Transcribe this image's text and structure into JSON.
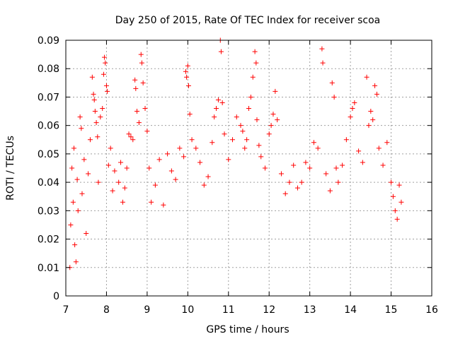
{
  "chart_data": {
    "type": "scatter",
    "title": "Day 250 of 2015, Rate Of TEC Index for receiver scoa",
    "xlabel": "GPS time / hours",
    "ylabel": "ROTI / TECUs",
    "xlim": [
      7,
      16
    ],
    "ylim": [
      0,
      0.09
    ],
    "xticks": [
      "7",
      "8",
      "9",
      "10",
      "11",
      "12",
      "13",
      "14",
      "15",
      "16"
    ],
    "yticks": [
      "0",
      "0.01",
      "0.02",
      "0.03",
      "0.04",
      "0.05",
      "0.06",
      "0.07",
      "0.08",
      "0.09"
    ],
    "grid": true,
    "marker": "+",
    "color": "#ff0000",
    "series": [
      {
        "points": [
          [
            7.1,
            0.01
          ],
          [
            7.12,
            0.025
          ],
          [
            7.15,
            0.045
          ],
          [
            7.18,
            0.033
          ],
          [
            7.2,
            0.052
          ],
          [
            7.22,
            0.018
          ],
          [
            7.25,
            0.012
          ],
          [
            7.28,
            0.041
          ],
          [
            7.3,
            0.03
          ],
          [
            7.35,
            0.063
          ],
          [
            7.38,
            0.059
          ],
          [
            7.4,
            0.036
          ],
          [
            7.45,
            0.048
          ],
          [
            7.5,
            0.022
          ],
          [
            7.55,
            0.043
          ],
          [
            7.6,
            0.055
          ],
          [
            7.65,
            0.077
          ],
          [
            7.68,
            0.071
          ],
          [
            7.7,
            0.069
          ],
          [
            7.72,
            0.065
          ],
          [
            7.75,
            0.061
          ],
          [
            7.78,
            0.056
          ],
          [
            7.8,
            0.04
          ],
          [
            7.85,
            0.063
          ],
          [
            7.9,
            0.066
          ],
          [
            7.93,
            0.078
          ],
          [
            7.95,
            0.084
          ],
          [
            7.97,
            0.082
          ],
          [
            8.0,
            0.074
          ],
          [
            8.02,
            0.072
          ],
          [
            8.05,
            0.046
          ],
          [
            8.1,
            0.052
          ],
          [
            8.15,
            0.037
          ],
          [
            8.2,
            0.044
          ],
          [
            8.3,
            0.04
          ],
          [
            8.35,
            0.047
          ],
          [
            8.4,
            0.033
          ],
          [
            8.45,
            0.038
          ],
          [
            8.5,
            0.045
          ],
          [
            8.55,
            0.057
          ],
          [
            8.6,
            0.056
          ],
          [
            8.65,
            0.055
          ],
          [
            8.7,
            0.076
          ],
          [
            8.72,
            0.073
          ],
          [
            8.75,
            0.065
          ],
          [
            8.8,
            0.061
          ],
          [
            8.85,
            0.085
          ],
          [
            8.87,
            0.082
          ],
          [
            8.9,
            0.075
          ],
          [
            8.95,
            0.066
          ],
          [
            9.0,
            0.058
          ],
          [
            9.05,
            0.045
          ],
          [
            9.1,
            0.033
          ],
          [
            9.2,
            0.039
          ],
          [
            9.3,
            0.048
          ],
          [
            9.4,
            0.032
          ],
          [
            9.5,
            0.05
          ],
          [
            9.6,
            0.044
          ],
          [
            9.7,
            0.041
          ],
          [
            9.8,
            0.052
          ],
          [
            9.9,
            0.049
          ],
          [
            9.95,
            0.079
          ],
          [
            9.97,
            0.077
          ],
          [
            10.0,
            0.081
          ],
          [
            10.02,
            0.074
          ],
          [
            10.05,
            0.064
          ],
          [
            10.1,
            0.055
          ],
          [
            10.2,
            0.052
          ],
          [
            10.3,
            0.047
          ],
          [
            10.4,
            0.039
          ],
          [
            10.5,
            0.042
          ],
          [
            10.6,
            0.054
          ],
          [
            10.65,
            0.063
          ],
          [
            10.7,
            0.066
          ],
          [
            10.75,
            0.069
          ],
          [
            10.8,
            0.09
          ],
          [
            10.82,
            0.086
          ],
          [
            10.85,
            0.068
          ],
          [
            10.9,
            0.057
          ],
          [
            11.0,
            0.048
          ],
          [
            11.1,
            0.055
          ],
          [
            11.2,
            0.063
          ],
          [
            11.3,
            0.06
          ],
          [
            11.35,
            0.058
          ],
          [
            11.4,
            0.052
          ],
          [
            11.45,
            0.055
          ],
          [
            11.5,
            0.066
          ],
          [
            11.55,
            0.07
          ],
          [
            11.6,
            0.077
          ],
          [
            11.65,
            0.086
          ],
          [
            11.68,
            0.082
          ],
          [
            11.7,
            0.062
          ],
          [
            11.75,
            0.053
          ],
          [
            11.8,
            0.049
          ],
          [
            11.9,
            0.045
          ],
          [
            12.0,
            0.057
          ],
          [
            12.05,
            0.06
          ],
          [
            12.1,
            0.064
          ],
          [
            12.15,
            0.072
          ],
          [
            12.2,
            0.062
          ],
          [
            12.3,
            0.043
          ],
          [
            12.4,
            0.036
          ],
          [
            12.5,
            0.04
          ],
          [
            12.6,
            0.046
          ],
          [
            12.7,
            0.038
          ],
          [
            12.8,
            0.04
          ],
          [
            12.9,
            0.047
          ],
          [
            13.0,
            0.045
          ],
          [
            13.1,
            0.054
          ],
          [
            13.2,
            0.052
          ],
          [
            13.3,
            0.087
          ],
          [
            13.32,
            0.082
          ],
          [
            13.4,
            0.043
          ],
          [
            13.5,
            0.037
          ],
          [
            13.55,
            0.075
          ],
          [
            13.6,
            0.07
          ],
          [
            13.65,
            0.045
          ],
          [
            13.7,
            0.04
          ],
          [
            13.8,
            0.046
          ],
          [
            13.9,
            0.055
          ],
          [
            14.0,
            0.063
          ],
          [
            14.05,
            0.066
          ],
          [
            14.1,
            0.068
          ],
          [
            14.2,
            0.051
          ],
          [
            14.3,
            0.047
          ],
          [
            14.4,
            0.077
          ],
          [
            14.45,
            0.06
          ],
          [
            14.5,
            0.065
          ],
          [
            14.55,
            0.062
          ],
          [
            14.6,
            0.074
          ],
          [
            14.65,
            0.071
          ],
          [
            14.7,
            0.052
          ],
          [
            14.8,
            0.046
          ],
          [
            14.9,
            0.054
          ],
          [
            15.0,
            0.04
          ],
          [
            15.05,
            0.035
          ],
          [
            15.1,
            0.03
          ],
          [
            15.15,
            0.027
          ],
          [
            15.2,
            0.039
          ],
          [
            15.25,
            0.033
          ]
        ]
      }
    ]
  }
}
